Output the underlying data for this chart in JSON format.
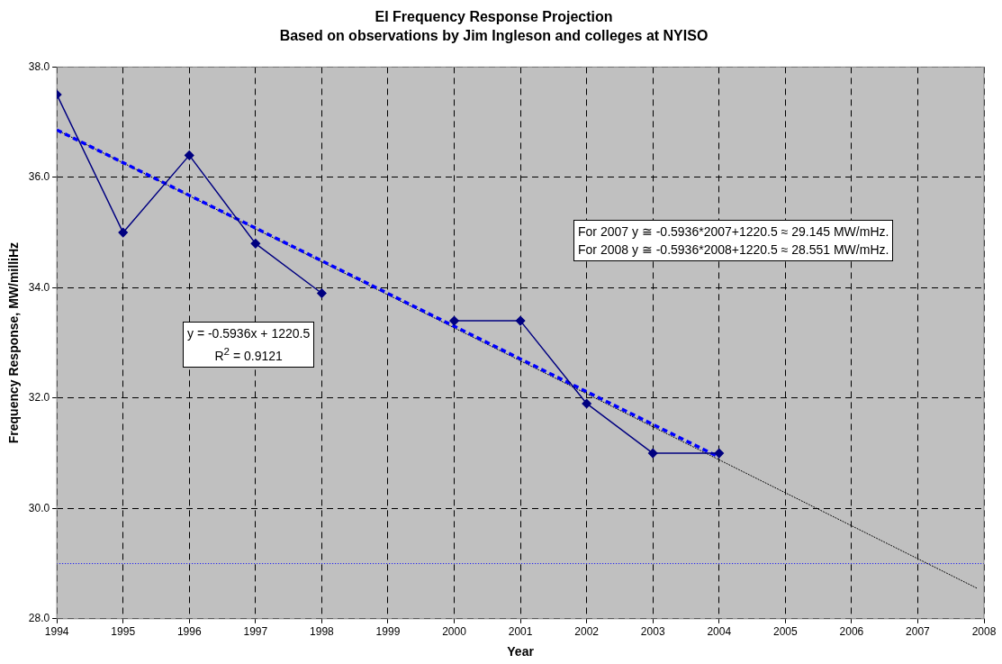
{
  "chart_data": {
    "type": "line",
    "title": "EI Frequency Response Projection",
    "subtitle": "Based on observations by Jim Ingleson and colleges at NYISO",
    "xlabel": "Year",
    "ylabel": "Frequency Response, MW/milliHz",
    "x": [
      1994,
      1995,
      1996,
      1997,
      1998,
      1999,
      2000,
      2001,
      2002,
      2003,
      2004
    ],
    "series": [
      {
        "color": "#000080",
        "marker": "diamond",
        "line_style": "solid",
        "values": [
          37.5,
          35.0,
          36.4,
          34.8,
          33.9,
          null,
          33.4,
          33.4,
          31.9,
          31.0,
          31.0
        ]
      },
      {
        "color": "#0000ff",
        "marker": "none",
        "line_style": "dashed",
        "x": [
          1994,
          2004
        ],
        "values": [
          36.86,
          30.93
        ]
      },
      {
        "color": "#000000",
        "marker": "none",
        "line_style": "dotted",
        "x": [
          1994,
          2007.9
        ],
        "values": [
          36.86,
          28.55
        ]
      }
    ],
    "xlim": [
      1994,
      2008
    ],
    "xticks": [
      1994,
      1995,
      1996,
      1997,
      1998,
      1999,
      2000,
      2001,
      2002,
      2003,
      2004,
      2005,
      2006,
      2007,
      2008
    ],
    "ylim": [
      28,
      38
    ],
    "yticks": [
      {
        "value": 28,
        "label": "28.0"
      },
      {
        "value": 30,
        "label": "30.0"
      },
      {
        "value": 32,
        "label": "32.0"
      },
      {
        "value": 34,
        "label": "34.0"
      },
      {
        "value": 36,
        "label": "36.0"
      },
      {
        "value": 38,
        "label": "38.0"
      }
    ],
    "ref_lines": [
      {
        "axis": "y",
        "value": 29,
        "color": "#0000ff",
        "line_style": "dotted"
      }
    ],
    "grid": true,
    "legend": false,
    "annotations": [
      "y = -0.5936x + 1220.5",
      "R$^{2}$ = 0.9121",
      "For 2007 y ≅ -0.5936*2007+1220.5 ≈ 29.145 MW/mHz.",
      "For 2008 y ≅ -0.5936*2008+1220.5 ≈ 28.551 MW/mHz."
    ]
  }
}
